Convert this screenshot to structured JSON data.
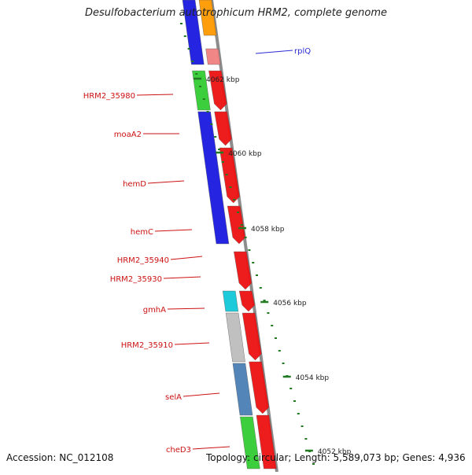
{
  "title": "Desulfobacterium autotrophicum HRM2, complete genome",
  "footer": {
    "accession": "Accession: NC_012108",
    "stats": "Topology: circular; Length: 5,589,073 bp; Genes: 4,936"
  },
  "ticks": [
    "4062 kbp",
    "4060 kbp",
    "4058 kbp",
    "4056 kbp",
    "4054 kbp",
    "4052 kbp"
  ],
  "gene_labels": [
    {
      "name": "rplQ",
      "color": "#2b2bd6"
    },
    {
      "name": "HRM2_35980",
      "color": "#cc1111"
    },
    {
      "name": "moaA2",
      "color": "#cc1111"
    },
    {
      "name": "hemD",
      "color": "#cc1111"
    },
    {
      "name": "hemC",
      "color": "#cc1111"
    },
    {
      "name": "HRM2_35940",
      "color": "#cc1111"
    },
    {
      "name": "HRM2_35930",
      "color": "#cc1111"
    },
    {
      "name": "gmhA",
      "color": "#cc1111"
    },
    {
      "name": "HRM2_35910",
      "color": "#cc1111"
    },
    {
      "name": "selA",
      "color": "#cc1111"
    },
    {
      "name": "cheD3",
      "color": "#cc1111"
    }
  ],
  "colors": {
    "backbone": "#8c8c8c",
    "gene_arrow": "#ee1111",
    "tick_mark": "#227a22",
    "cog_blue": "#1a1ae0",
    "cog_green": "#33cc33",
    "cog_cyan": "#11c8d8",
    "cog_gray": "#bdbdbd",
    "cog_steel": "#4a7fb5",
    "cog_orange": "#ff9900",
    "cog_pink": "#f08080"
  }
}
